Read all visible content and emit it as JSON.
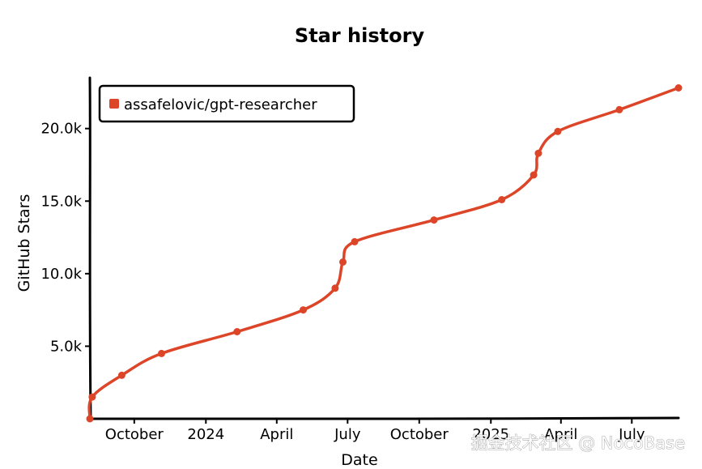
{
  "chart_data": {
    "type": "line",
    "title": "Star history",
    "xlabel": "Date",
    "ylabel": "GitHub Stars",
    "x_ticks": [
      "October",
      "2024",
      "April",
      "July",
      "October",
      "2025",
      "April",
      "July"
    ],
    "y_ticks": [
      "5.0k",
      "10.0k",
      "15.0k",
      "20.0k"
    ],
    "ylim": [
      0,
      23500
    ],
    "legend_position": "top-left",
    "grid": false,
    "series": [
      {
        "name": "assafelovic/gpt-researcher",
        "color": "#dd4528",
        "points": [
          {
            "x": "2023-08-05",
            "y": 0
          },
          {
            "x": "2023-08-08",
            "y": 1500
          },
          {
            "x": "2023-09-15",
            "y": 3000
          },
          {
            "x": "2023-11-05",
            "y": 4500
          },
          {
            "x": "2024-02-10",
            "y": 6000
          },
          {
            "x": "2024-05-05",
            "y": 7500
          },
          {
            "x": "2024-06-15",
            "y": 9000
          },
          {
            "x": "2024-06-25",
            "y": 10800
          },
          {
            "x": "2024-07-10",
            "y": 12200
          },
          {
            "x": "2024-10-20",
            "y": 13700
          },
          {
            "x": "2025-01-15",
            "y": 15100
          },
          {
            "x": "2025-02-25",
            "y": 16800
          },
          {
            "x": "2025-03-03",
            "y": 18300
          },
          {
            "x": "2025-03-28",
            "y": 19800
          },
          {
            "x": "2025-06-15",
            "y": 21300
          },
          {
            "x": "2025-08-30",
            "y": 22800
          }
        ]
      }
    ]
  },
  "watermark": "掘金技术社区 @ NocoBase"
}
